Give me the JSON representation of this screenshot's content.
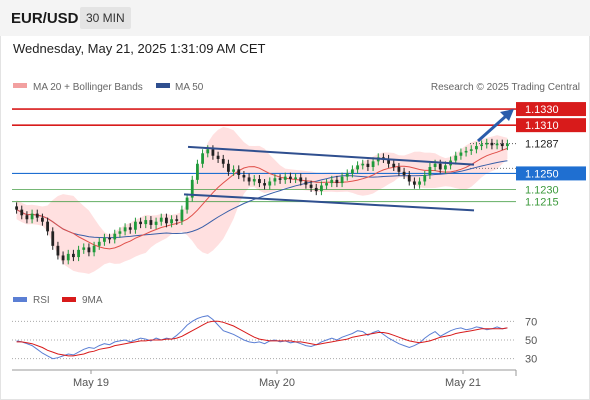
{
  "header": {
    "symbol": "EUR/USD",
    "timeframe": "30 MIN"
  },
  "datetime": "Wednesday, May 21, 2025 1:31:09 AM CET",
  "legend": {
    "ma20_label": "MA 20 + Bollinger Bands",
    "ma50_label": "MA 50",
    "credit": "Research © 2025 Trading Central"
  },
  "rsi_legend": {
    "rsi_label": "RSI",
    "ma_label": "9MA"
  },
  "colors": {
    "red_level": "#d81b1b",
    "blue_level": "#1f6fd1",
    "green_level": "#3c9a3c",
    "channel": "#2f4f8f",
    "band": "#ffd6d6",
    "ma50": "#3a5fa8",
    "ma20": "#e0504a",
    "bull": "#1f9a3a",
    "bear": "#222222",
    "rsi": "#5b7fd4",
    "rsi_ma": "#d81b1b"
  },
  "chart_data": [
    {
      "type": "candlestick",
      "title": "",
      "ylim": [
        1.112,
        1.1345
      ],
      "x_tick_labels": [
        "May 19",
        "May 20",
        "May 21"
      ],
      "levels": [
        {
          "value": 1.133,
          "label": "1.1330",
          "style": "resistance",
          "color": "red"
        },
        {
          "value": 1.131,
          "label": "1.1310",
          "style": "resistance",
          "color": "red"
        },
        {
          "value": 1.1287,
          "label": "1.1287",
          "style": "last-price",
          "color": "white"
        },
        {
          "value": 1.125,
          "label": "1.1250",
          "style": "pivot",
          "color": "blue"
        },
        {
          "value": 1.123,
          "label": "1.1230",
          "style": "support",
          "color": "green"
        },
        {
          "value": 1.1215,
          "label": "1.1215",
          "style": "support",
          "color": "green"
        }
      ],
      "channel": [
        {
          "from": [
            0,
            1.1283
          ],
          "to": [
            1,
            1.1261
          ]
        },
        {
          "from": [
            0,
            1.1224
          ],
          "to": [
            1,
            1.1204
          ]
        }
      ],
      "series_close": [
        1.1205,
        1.1198,
        1.1193,
        1.12,
        1.1195,
        1.119,
        1.1178,
        1.116,
        1.1148,
        1.1142,
        1.115,
        1.1146,
        1.1155,
        1.1158,
        1.1152,
        1.116,
        1.1165,
        1.117,
        1.1168,
        1.1175,
        1.1178,
        1.1183,
        1.118,
        1.119,
        1.1187,
        1.1192,
        1.1186,
        1.119,
        1.1195,
        1.1188,
        1.1193,
        1.1191,
        1.1205,
        1.122,
        1.1242,
        1.1262,
        1.1275,
        1.128,
        1.1272,
        1.1268,
        1.1262,
        1.1252,
        1.1255,
        1.1248,
        1.1245,
        1.124,
        1.1243,
        1.1238,
        1.1235,
        1.124,
        1.1244,
        1.1242,
        1.1246,
        1.1243,
        1.1245,
        1.124,
        1.1236,
        1.1232,
        1.1228,
        1.1235,
        1.1238,
        1.1242,
        1.1238,
        1.1246,
        1.125,
        1.1255,
        1.126,
        1.1262,
        1.1258,
        1.1265,
        1.127,
        1.1268,
        1.1262,
        1.1258,
        1.1252,
        1.1248,
        1.124,
        1.1236,
        1.124,
        1.1248,
        1.1258,
        1.1262,
        1.1255,
        1.126,
        1.1266,
        1.1272,
        1.1276,
        1.1278,
        1.128,
        1.1284,
        1.1286,
        1.1288,
        1.1285,
        1.1287,
        1.1284,
        1.1287
      ]
    },
    {
      "type": "line",
      "title": "",
      "ylim": [
        20,
        80
      ],
      "y_tick_labels": [
        "70",
        "50",
        "30"
      ],
      "y_ticks": [
        70,
        50,
        30
      ],
      "series": [
        {
          "name": "RSI",
          "values": [
            49,
            48,
            46,
            44,
            40,
            36,
            33,
            30,
            31,
            33,
            35,
            34,
            37,
            40,
            42,
            41,
            44,
            46,
            45,
            48,
            49,
            50,
            48,
            50,
            52,
            51,
            49,
            52,
            50,
            52,
            51,
            55,
            60,
            66,
            70,
            73,
            75,
            76,
            72,
            66,
            60,
            58,
            56,
            53,
            50,
            48,
            47,
            48,
            46,
            49,
            50,
            48,
            49,
            47,
            48,
            46,
            44,
            43,
            45,
            48,
            50,
            52,
            50,
            53,
            55,
            57,
            60,
            59,
            55,
            58,
            60,
            56,
            52,
            49,
            46,
            44,
            42,
            44,
            47,
            52,
            56,
            59,
            54,
            57,
            60,
            62,
            63,
            61,
            62,
            64,
            63,
            61,
            62,
            64,
            62,
            63
          ]
        },
        {
          "name": "9MA",
          "values": [
            48,
            48,
            47,
            46,
            44,
            42,
            39,
            37,
            35,
            34,
            33,
            33,
            34,
            35,
            37,
            38,
            40,
            41,
            42,
            44,
            45,
            46,
            47,
            48,
            49,
            49,
            50,
            50,
            50,
            51,
            51,
            52,
            54,
            57,
            60,
            63,
            66,
            69,
            70,
            70,
            69,
            67,
            65,
            62,
            59,
            56,
            53,
            51,
            50,
            49,
            49,
            49,
            49,
            49,
            48,
            48,
            47,
            46,
            45,
            46,
            47,
            48,
            49,
            50,
            51,
            53,
            54,
            55,
            56,
            57,
            58,
            58,
            57,
            55,
            53,
            51,
            49,
            48,
            47,
            48,
            49,
            51,
            53,
            54,
            55,
            57,
            58,
            59,
            60,
            61,
            62,
            62,
            62,
            62,
            62,
            63
          ]
        }
      ]
    }
  ]
}
